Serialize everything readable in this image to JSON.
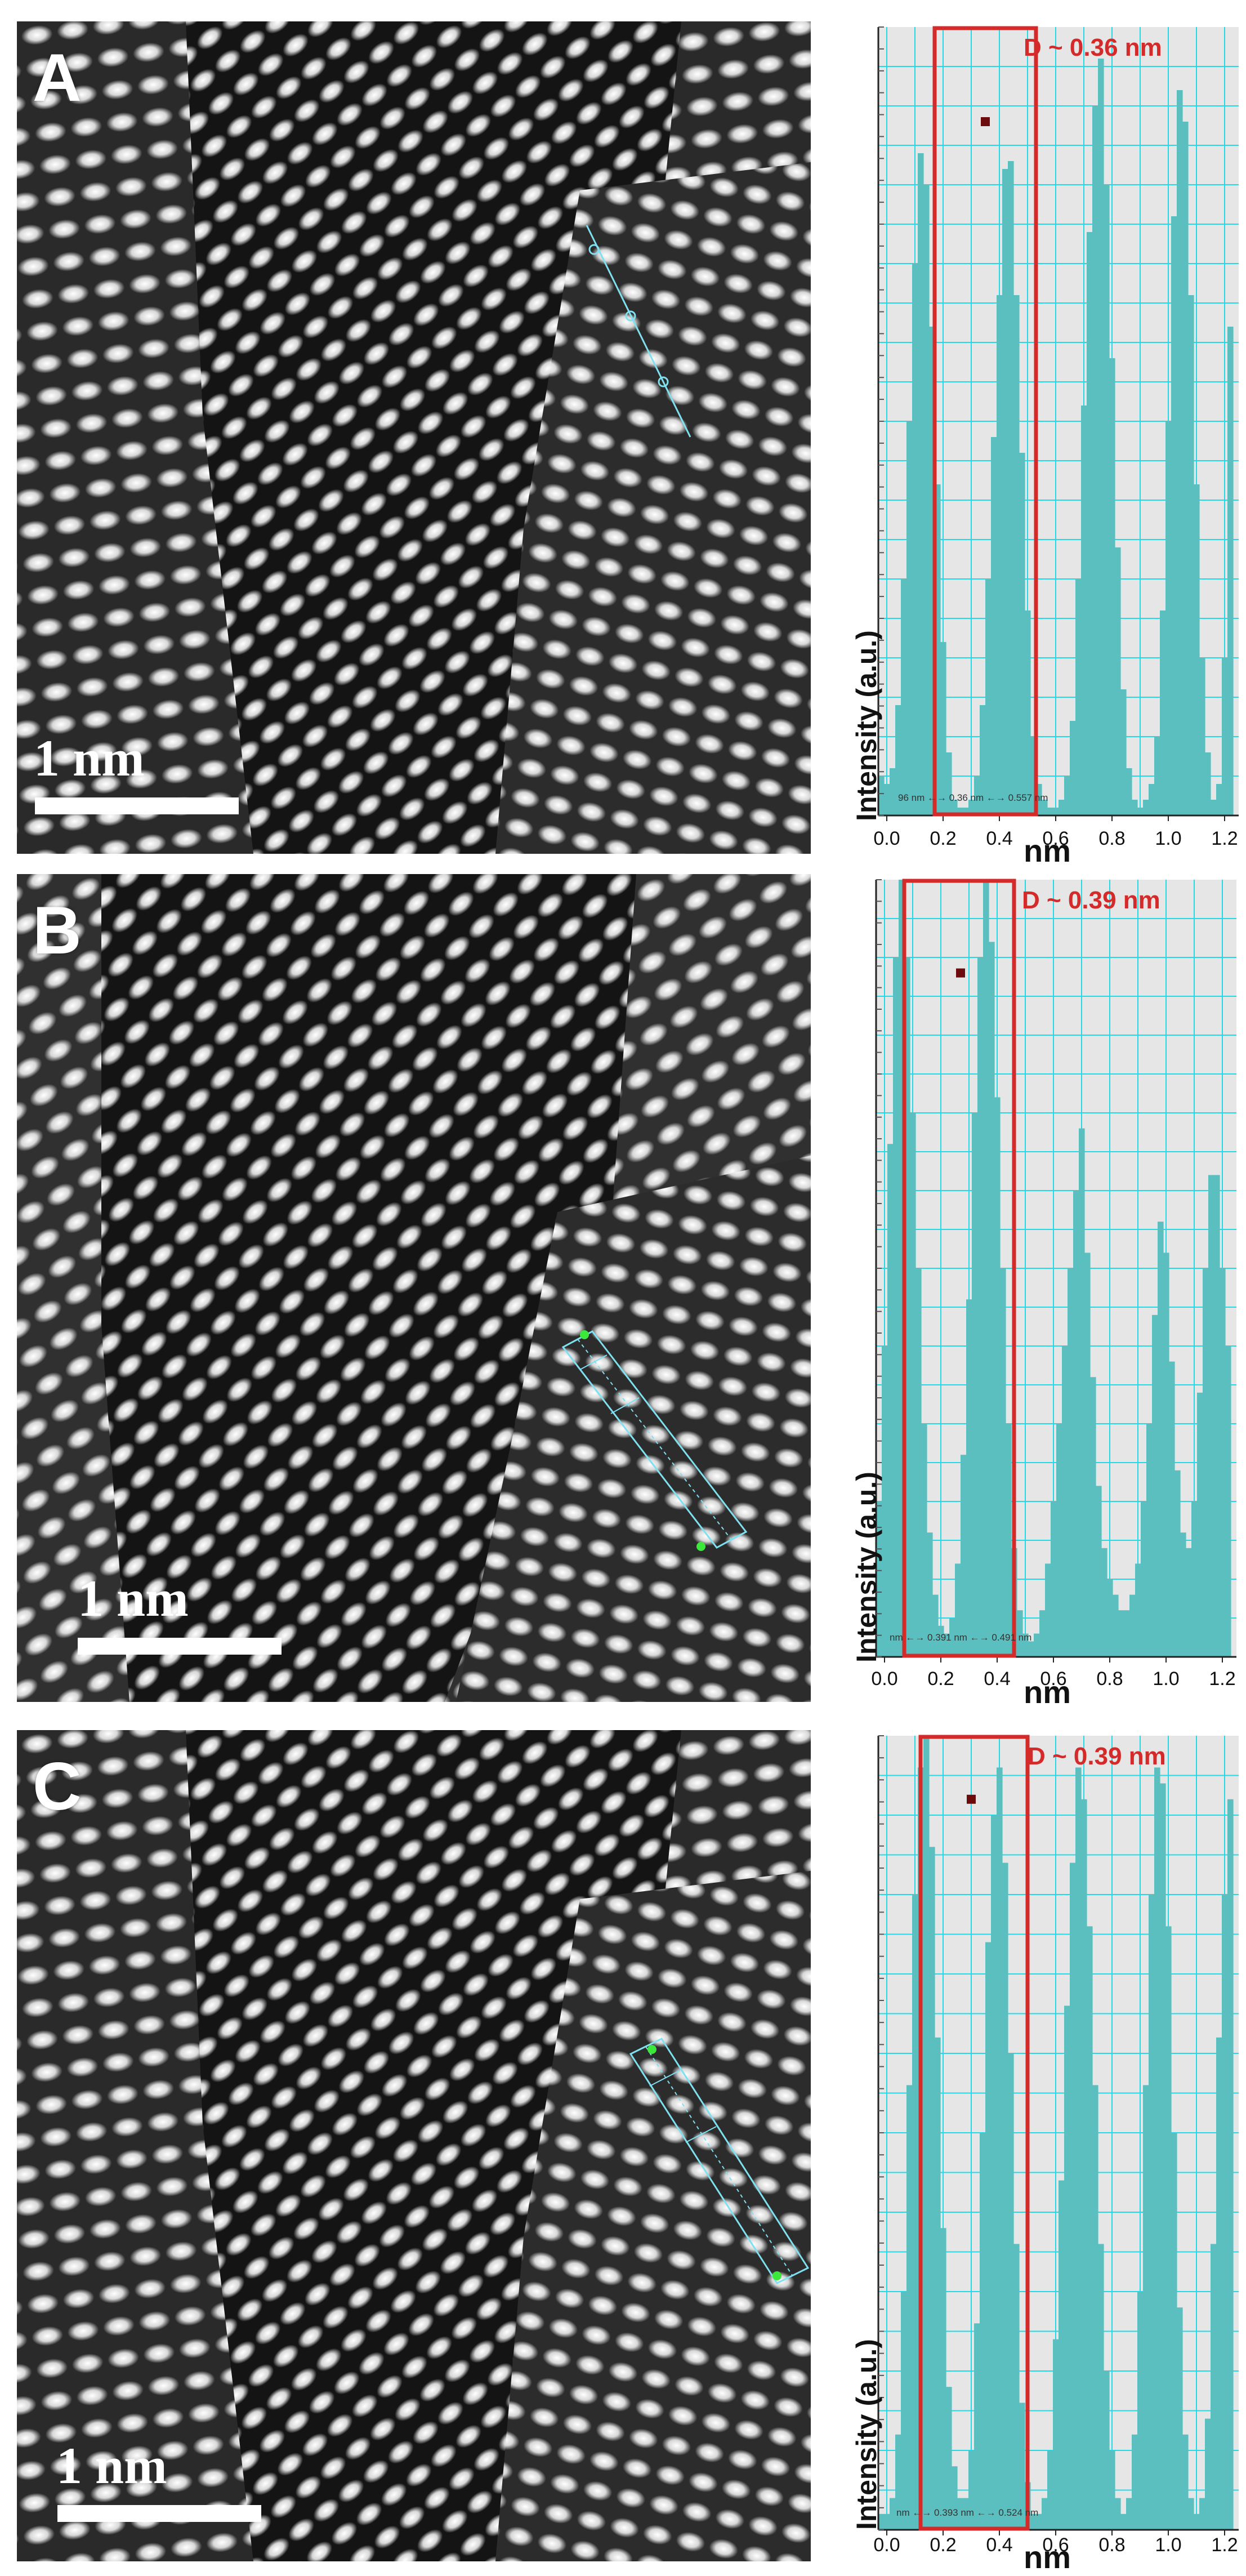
{
  "colors": {
    "bar": "#5bbfbf",
    "plot_bg": "#e6e6e6",
    "grid": "#23d9e6",
    "highlight": "#d42a2a",
    "marker": "#6b0b0b",
    "label_red": "#d42a2a",
    "profile_line": "#7fe0f0",
    "profile_point": "#3de83d"
  },
  "panels": [
    {
      "letter": "A",
      "scale_label": "1 nm",
      "chart_data": {
        "type": "bar",
        "xlabel": "nm",
        "ylabel": "Intensity (a.u.)",
        "xticks": [
          "0.0",
          "0.2",
          "0.4",
          "0.6",
          "0.8",
          "1.0",
          "1.2"
        ],
        "xlim": [
          -0.03,
          1.25
        ],
        "ylim": [
          0,
          1
        ],
        "annotation": "D ~ 0.36 nm",
        "highlight_range": [
          0.17,
          0.53
        ],
        "marker": [
          0.35,
          0.88
        ],
        "measure_text": "96 nm ←→ 0.36 nm ←→ 0.557 nm",
        "x": [
          -0.02,
          0.0,
          0.02,
          0.04,
          0.06,
          0.08,
          0.1,
          0.12,
          0.14,
          0.16,
          0.18,
          0.2,
          0.22,
          0.24,
          0.26,
          0.28,
          0.3,
          0.32,
          0.34,
          0.36,
          0.38,
          0.4,
          0.42,
          0.44,
          0.46,
          0.48,
          0.5,
          0.52,
          0.54,
          0.56,
          0.58,
          0.6,
          0.62,
          0.64,
          0.66,
          0.68,
          0.7,
          0.72,
          0.74,
          0.76,
          0.78,
          0.8,
          0.82,
          0.84,
          0.86,
          0.88,
          0.9,
          0.92,
          0.94,
          0.96,
          0.98,
          1.0,
          1.02,
          1.04,
          1.06,
          1.08,
          1.1,
          1.12,
          1.14,
          1.16,
          1.18,
          1.2,
          1.22
        ],
        "values": [
          0.05,
          0.04,
          0.06,
          0.14,
          0.3,
          0.5,
          0.7,
          0.84,
          0.8,
          0.62,
          0.42,
          0.22,
          0.08,
          0.02,
          0.01,
          0.01,
          0.02,
          0.05,
          0.14,
          0.3,
          0.48,
          0.66,
          0.82,
          0.83,
          0.66,
          0.46,
          0.26,
          0.1,
          0.04,
          0.02,
          0.01,
          0.01,
          0.02,
          0.05,
          0.12,
          0.3,
          0.52,
          0.74,
          0.9,
          0.96,
          0.8,
          0.58,
          0.34,
          0.16,
          0.06,
          0.02,
          0.01,
          0.02,
          0.04,
          0.1,
          0.26,
          0.5,
          0.76,
          0.92,
          0.88,
          0.66,
          0.42,
          0.2,
          0.08,
          0.02,
          0.04,
          0.2,
          0.62
        ]
      }
    },
    {
      "letter": "B",
      "scale_label": "1 nm",
      "chart_data": {
        "type": "bar",
        "xlabel": "nm",
        "ylabel": "Intensity (a.u.)",
        "xticks": [
          "0.0",
          "0.2",
          "0.4",
          "0.6",
          "0.8",
          "1.0",
          "1.2"
        ],
        "xlim": [
          -0.03,
          1.25
        ],
        "ylim": [
          0,
          1
        ],
        "annotation": "D ~ 0.39 nm",
        "highlight_range": [
          0.07,
          0.46
        ],
        "marker": [
          0.27,
          0.88
        ],
        "measure_text": "nm ←→ 0.391 nm ←→ 0.491 nm",
        "x": [
          -0.02,
          0.0,
          0.02,
          0.04,
          0.06,
          0.08,
          0.1,
          0.12,
          0.14,
          0.16,
          0.18,
          0.2,
          0.22,
          0.24,
          0.26,
          0.28,
          0.3,
          0.32,
          0.34,
          0.36,
          0.38,
          0.4,
          0.42,
          0.44,
          0.46,
          0.48,
          0.5,
          0.52,
          0.54,
          0.56,
          0.58,
          0.6,
          0.62,
          0.64,
          0.66,
          0.68,
          0.7,
          0.72,
          0.74,
          0.76,
          0.78,
          0.8,
          0.82,
          0.84,
          0.86,
          0.88,
          0.9,
          0.92,
          0.94,
          0.96,
          0.98,
          1.0,
          1.02,
          1.04,
          1.06,
          1.08,
          1.1,
          1.12,
          1.14,
          1.16,
          1.18,
          1.2,
          1.22
        ],
        "values": [
          0.2,
          0.4,
          0.66,
          0.9,
          1.0,
          0.9,
          0.7,
          0.5,
          0.3,
          0.16,
          0.08,
          0.04,
          0.03,
          0.05,
          0.12,
          0.26,
          0.46,
          0.7,
          0.9,
          1.0,
          0.92,
          0.72,
          0.5,
          0.3,
          0.14,
          0.06,
          0.03,
          0.02,
          0.03,
          0.06,
          0.12,
          0.2,
          0.3,
          0.4,
          0.5,
          0.6,
          0.68,
          0.52,
          0.36,
          0.22,
          0.14,
          0.1,
          0.08,
          0.06,
          0.06,
          0.08,
          0.12,
          0.2,
          0.3,
          0.44,
          0.56,
          0.52,
          0.38,
          0.24,
          0.16,
          0.14,
          0.2,
          0.34,
          0.5,
          0.62,
          0.62,
          0.5,
          0.4
        ]
      }
    },
    {
      "letter": "C",
      "scale_label": "1 nm",
      "chart_data": {
        "type": "bar",
        "xlabel": "nm",
        "ylabel": "Intensity (a.u.)",
        "xticks": [
          "0.0",
          "0.2",
          "0.4",
          "0.6",
          "0.8",
          "1.0",
          "1.2"
        ],
        "xlim": [
          -0.03,
          1.25
        ],
        "ylim": [
          0,
          1
        ],
        "annotation": "D ~ 0.39 nm",
        "highlight_range": [
          0.12,
          0.5
        ],
        "marker": [
          0.3,
          0.92
        ],
        "measure_text": "nm ←→ 0.393 nm ←→ 0.524 nm",
        "x": [
          -0.02,
          0.0,
          0.02,
          0.04,
          0.06,
          0.08,
          0.1,
          0.12,
          0.14,
          0.16,
          0.18,
          0.2,
          0.22,
          0.24,
          0.26,
          0.28,
          0.3,
          0.32,
          0.34,
          0.36,
          0.38,
          0.4,
          0.42,
          0.44,
          0.46,
          0.48,
          0.5,
          0.52,
          0.54,
          0.56,
          0.58,
          0.6,
          0.62,
          0.64,
          0.66,
          0.68,
          0.7,
          0.72,
          0.74,
          0.76,
          0.78,
          0.8,
          0.82,
          0.84,
          0.86,
          0.88,
          0.9,
          0.92,
          0.94,
          0.96,
          0.98,
          1.0,
          1.02,
          1.04,
          1.06,
          1.08,
          1.1,
          1.12,
          1.14,
          1.16,
          1.18,
          1.2,
          1.22
        ],
        "values": [
          0.02,
          0.02,
          0.04,
          0.12,
          0.3,
          0.56,
          0.8,
          0.96,
          1.0,
          0.86,
          0.62,
          0.38,
          0.18,
          0.08,
          0.04,
          0.04,
          0.1,
          0.26,
          0.5,
          0.74,
          0.9,
          0.96,
          0.84,
          0.6,
          0.36,
          0.16,
          0.06,
          0.02,
          0.02,
          0.04,
          0.1,
          0.24,
          0.44,
          0.66,
          0.84,
          0.96,
          0.92,
          0.76,
          0.56,
          0.36,
          0.2,
          0.1,
          0.04,
          0.02,
          0.04,
          0.12,
          0.3,
          0.56,
          0.8,
          0.96,
          0.94,
          0.76,
          0.5,
          0.28,
          0.12,
          0.04,
          0.02,
          0.04,
          0.14,
          0.36,
          0.62,
          0.8,
          0.92
        ]
      }
    }
  ]
}
